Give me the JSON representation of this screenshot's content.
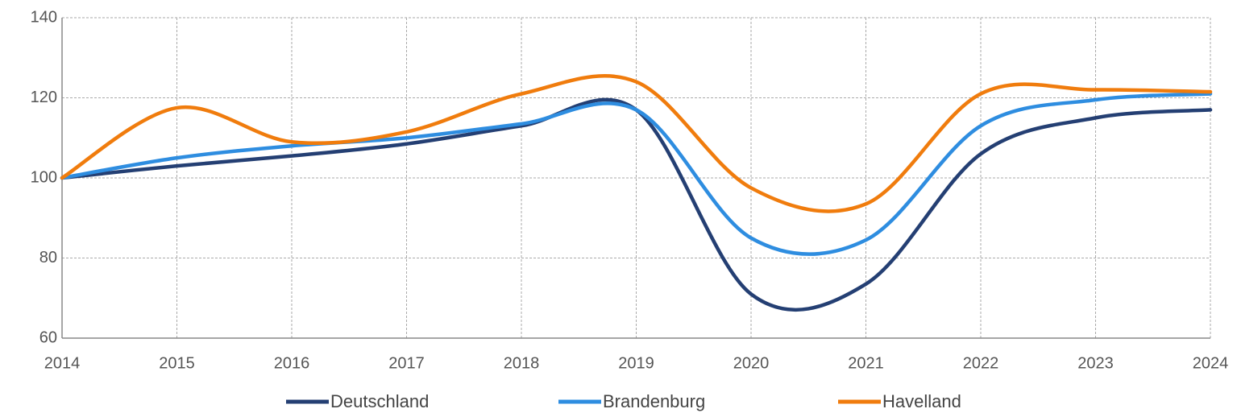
{
  "chart_data": {
    "type": "line",
    "x": [
      2014,
      2015,
      2016,
      2017,
      2018,
      2019,
      2020,
      2021,
      2022,
      2023,
      2024
    ],
    "series": [
      {
        "name": "Deutschland",
        "color": "#243f73",
        "values": [
          100,
          103,
          105.5,
          108.5,
          113,
          117,
          71,
          73.5,
          106,
          115,
          117
        ]
      },
      {
        "name": "Brandenburg",
        "color": "#2e8de0",
        "values": [
          100,
          105,
          108,
          110,
          113.5,
          117,
          85,
          84.5,
          113,
          119.5,
          121
        ]
      },
      {
        "name": "Havelland",
        "color": "#f07c0d",
        "values": [
          100,
          117.5,
          109,
          111.5,
          121,
          124,
          97.5,
          93.5,
          121,
          122,
          121.5
        ]
      }
    ],
    "xlim": [
      2014,
      2024
    ],
    "xticks": [
      2014,
      2015,
      2016,
      2017,
      2018,
      2019,
      2020,
      2021,
      2022,
      2023,
      2024
    ],
    "ylim": [
      60,
      140
    ],
    "yticks": [
      60,
      80,
      100,
      120,
      140
    ],
    "grid": true,
    "legend": "bottom"
  }
}
